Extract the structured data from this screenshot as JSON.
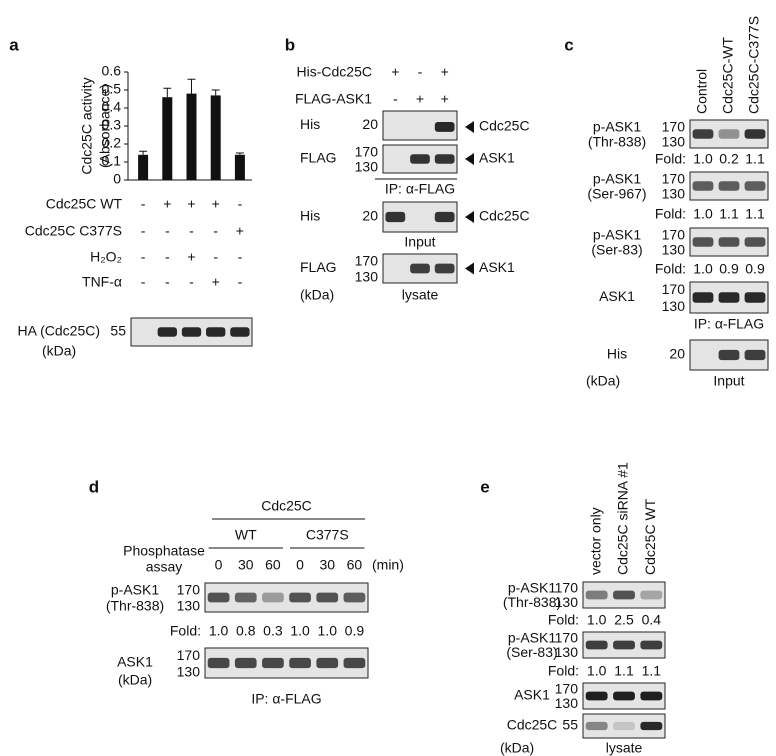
{
  "chart_data": {
    "type": "bar",
    "panel_label": "a",
    "y_label": [
      "Cdc25C activity",
      "(Absorbance)"
    ],
    "categories": [
      null,
      null,
      null,
      null,
      null
    ],
    "values": [
      0.14,
      0.46,
      0.48,
      0.47,
      0.14
    ],
    "errors": [
      0.02,
      0.05,
      0.08,
      0.03,
      0.01
    ],
    "color": "#111111",
    "ylim": [
      0,
      0.6
    ],
    "yticks": [
      0,
      0.1,
      0.2,
      0.3,
      0.4,
      0.5,
      0.6
    ],
    "conditions": [
      {
        "name": "Cdc25C WT",
        "marks": [
          "-",
          "+",
          "+",
          "+",
          "-"
        ]
      },
      {
        "name": "Cdc25C C377S",
        "marks": [
          "-",
          "-",
          "-",
          "-",
          "+"
        ]
      },
      {
        "name": "H₂O₂",
        "marks": [
          "-",
          "-",
          "+",
          "-",
          "-"
        ]
      },
      {
        "name": "TNF-α",
        "marks": [
          "-",
          "-",
          "-",
          "+",
          "-"
        ]
      }
    ],
    "blot": {
      "label": [
        "HA (Cdc25C)"
      ],
      "markers": [
        "55"
      ]
    },
    "unit": "(kDa)"
  },
  "panel_b": {
    "label": "b",
    "conditions": [
      {
        "name": "His-Cdc25C",
        "marks": [
          "+",
          "-",
          "+"
        ]
      },
      {
        "name": "FLAG-ASK1",
        "marks": [
          "-",
          "+",
          "+"
        ]
      }
    ],
    "blots": [
      {
        "label": [
          "His"
        ],
        "markers": [
          "20"
        ],
        "band": "Cdc25C"
      },
      {
        "label": [
          "FLAG"
        ],
        "markers": [
          "170",
          "130"
        ],
        "band": "ASK1",
        "caption": "IP: α-FLAG"
      },
      {
        "label": [
          "His"
        ],
        "markers": [
          "20"
        ],
        "band": "Cdc25C",
        "caption": "Input"
      },
      {
        "label": [
          "FLAG"
        ],
        "markers": [
          "170",
          "130"
        ],
        "band": "ASK1",
        "caption": "lysate"
      }
    ],
    "unit": "(kDa)"
  },
  "panel_c": {
    "label": "c",
    "headers": [
      "Control",
      "Cdc25C-WT",
      "Cdc25C-C377S"
    ],
    "fold_label": "Fold:",
    "blots": [
      {
        "label": [
          "p-ASK1",
          "(Thr-838)"
        ],
        "markers": [
          "170",
          "130"
        ],
        "fold": [
          "1.0",
          "0.2",
          "1.1"
        ]
      },
      {
        "label": [
          "p-ASK1",
          "(Ser-967)"
        ],
        "markers": [
          "170",
          "130"
        ],
        "fold": [
          "1.0",
          "1.1",
          "1.1"
        ]
      },
      {
        "label": [
          "p-ASK1",
          "(Ser-83)"
        ],
        "markers": [
          "170",
          "130"
        ],
        "fold": [
          "1.0",
          "0.9",
          "0.9"
        ]
      },
      {
        "label": [
          "ASK1"
        ],
        "markers": [
          "170",
          "130"
        ],
        "caption": "IP: α-FLAG"
      },
      {
        "label": [
          "His"
        ],
        "markers": [
          "20"
        ],
        "caption": "Input"
      }
    ],
    "unit": "(kDa)"
  },
  "panel_d": {
    "label": "d",
    "header": "Cdc25C",
    "groups": [
      "WT",
      "C377S"
    ],
    "row_label": [
      "Phosphatase",
      "assay"
    ],
    "times": [
      0,
      30,
      60,
      0,
      30,
      60
    ],
    "time_unit": "(min)",
    "fold_label": "Fold:",
    "blots": [
      {
        "label": [
          "p-ASK1",
          "(Thr-838)"
        ],
        "markers": [
          "170",
          "130"
        ],
        "fold": [
          "1.0",
          "0.8",
          "0.3",
          "1.0",
          "1.0",
          "0.9"
        ]
      },
      {
        "label": [
          "ASK1"
        ],
        "markers": [
          "170",
          "130"
        ],
        "caption": "IP: α-FLAG"
      }
    ],
    "unit": "(kDa)"
  },
  "panel_e": {
    "label": "e",
    "headers": [
      "vector only",
      "Cdc25C siRNA #1",
      "Cdc25C WT"
    ],
    "fold_label": "Fold:",
    "blots": [
      {
        "label": [
          "p-ASK1",
          "(Thr-838)"
        ],
        "markers": [
          "170",
          "130"
        ],
        "fold": [
          "1.0",
          "2.5",
          "0.4"
        ]
      },
      {
        "label": [
          "p-ASK1",
          "(Ser-83)"
        ],
        "markers": [
          "170",
          "130"
        ],
        "fold": [
          "1.0",
          "1.1",
          "1.1"
        ]
      },
      {
        "label": [
          "ASK1"
        ],
        "markers": [
          "170",
          "130"
        ]
      },
      {
        "label": [
          "Cdc25C"
        ],
        "markers": [
          "55"
        ],
        "caption": "lysate"
      }
    ],
    "unit": "(kDa)"
  }
}
